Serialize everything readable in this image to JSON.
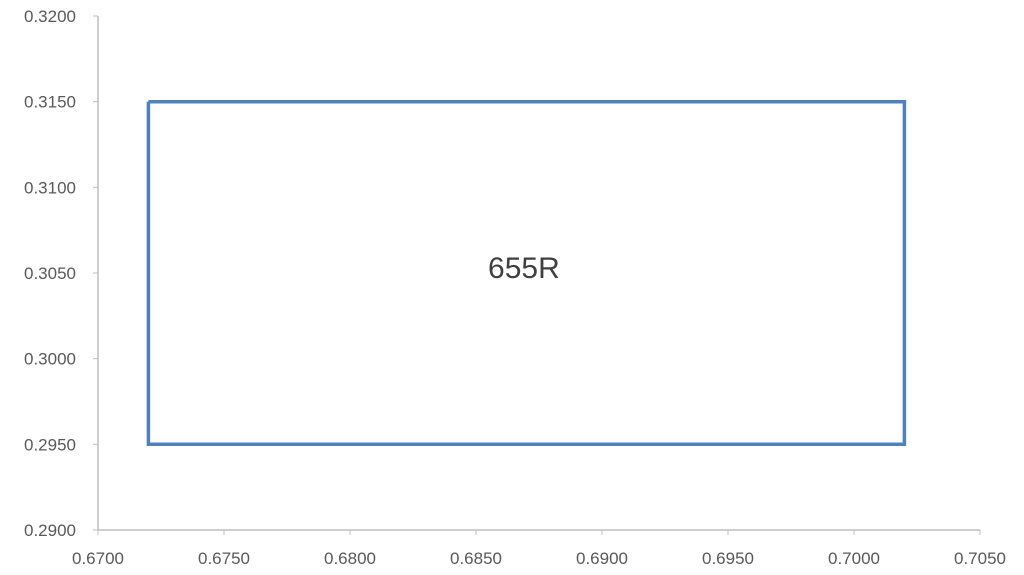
{
  "chart_data": {
    "type": "line",
    "title": "",
    "xlabel": "",
    "ylabel": "",
    "xlim": [
      0.67,
      0.705
    ],
    "ylim": [
      0.29,
      0.32
    ],
    "x_ticks": [
      "0.6700",
      "0.6750",
      "0.6800",
      "0.6850",
      "0.6900",
      "0.6950",
      "0.7000",
      "0.7050"
    ],
    "y_ticks": [
      "0.2900",
      "0.2950",
      "0.3000",
      "0.3050",
      "0.3100",
      "0.3150",
      "0.3200"
    ],
    "grid": false,
    "legend": "none",
    "series": [
      {
        "color": "#4F81BD",
        "x": [
          0.672,
          0.702,
          0.702,
          0.672,
          0.672
        ],
        "y": [
          0.315,
          0.315,
          0.295,
          0.295,
          0.315
        ]
      }
    ],
    "annotations": [
      {
        "text": "655R",
        "x": 0.6869,
        "y": 0.3053
      }
    ],
    "axis_color": "#BFBFBF"
  }
}
